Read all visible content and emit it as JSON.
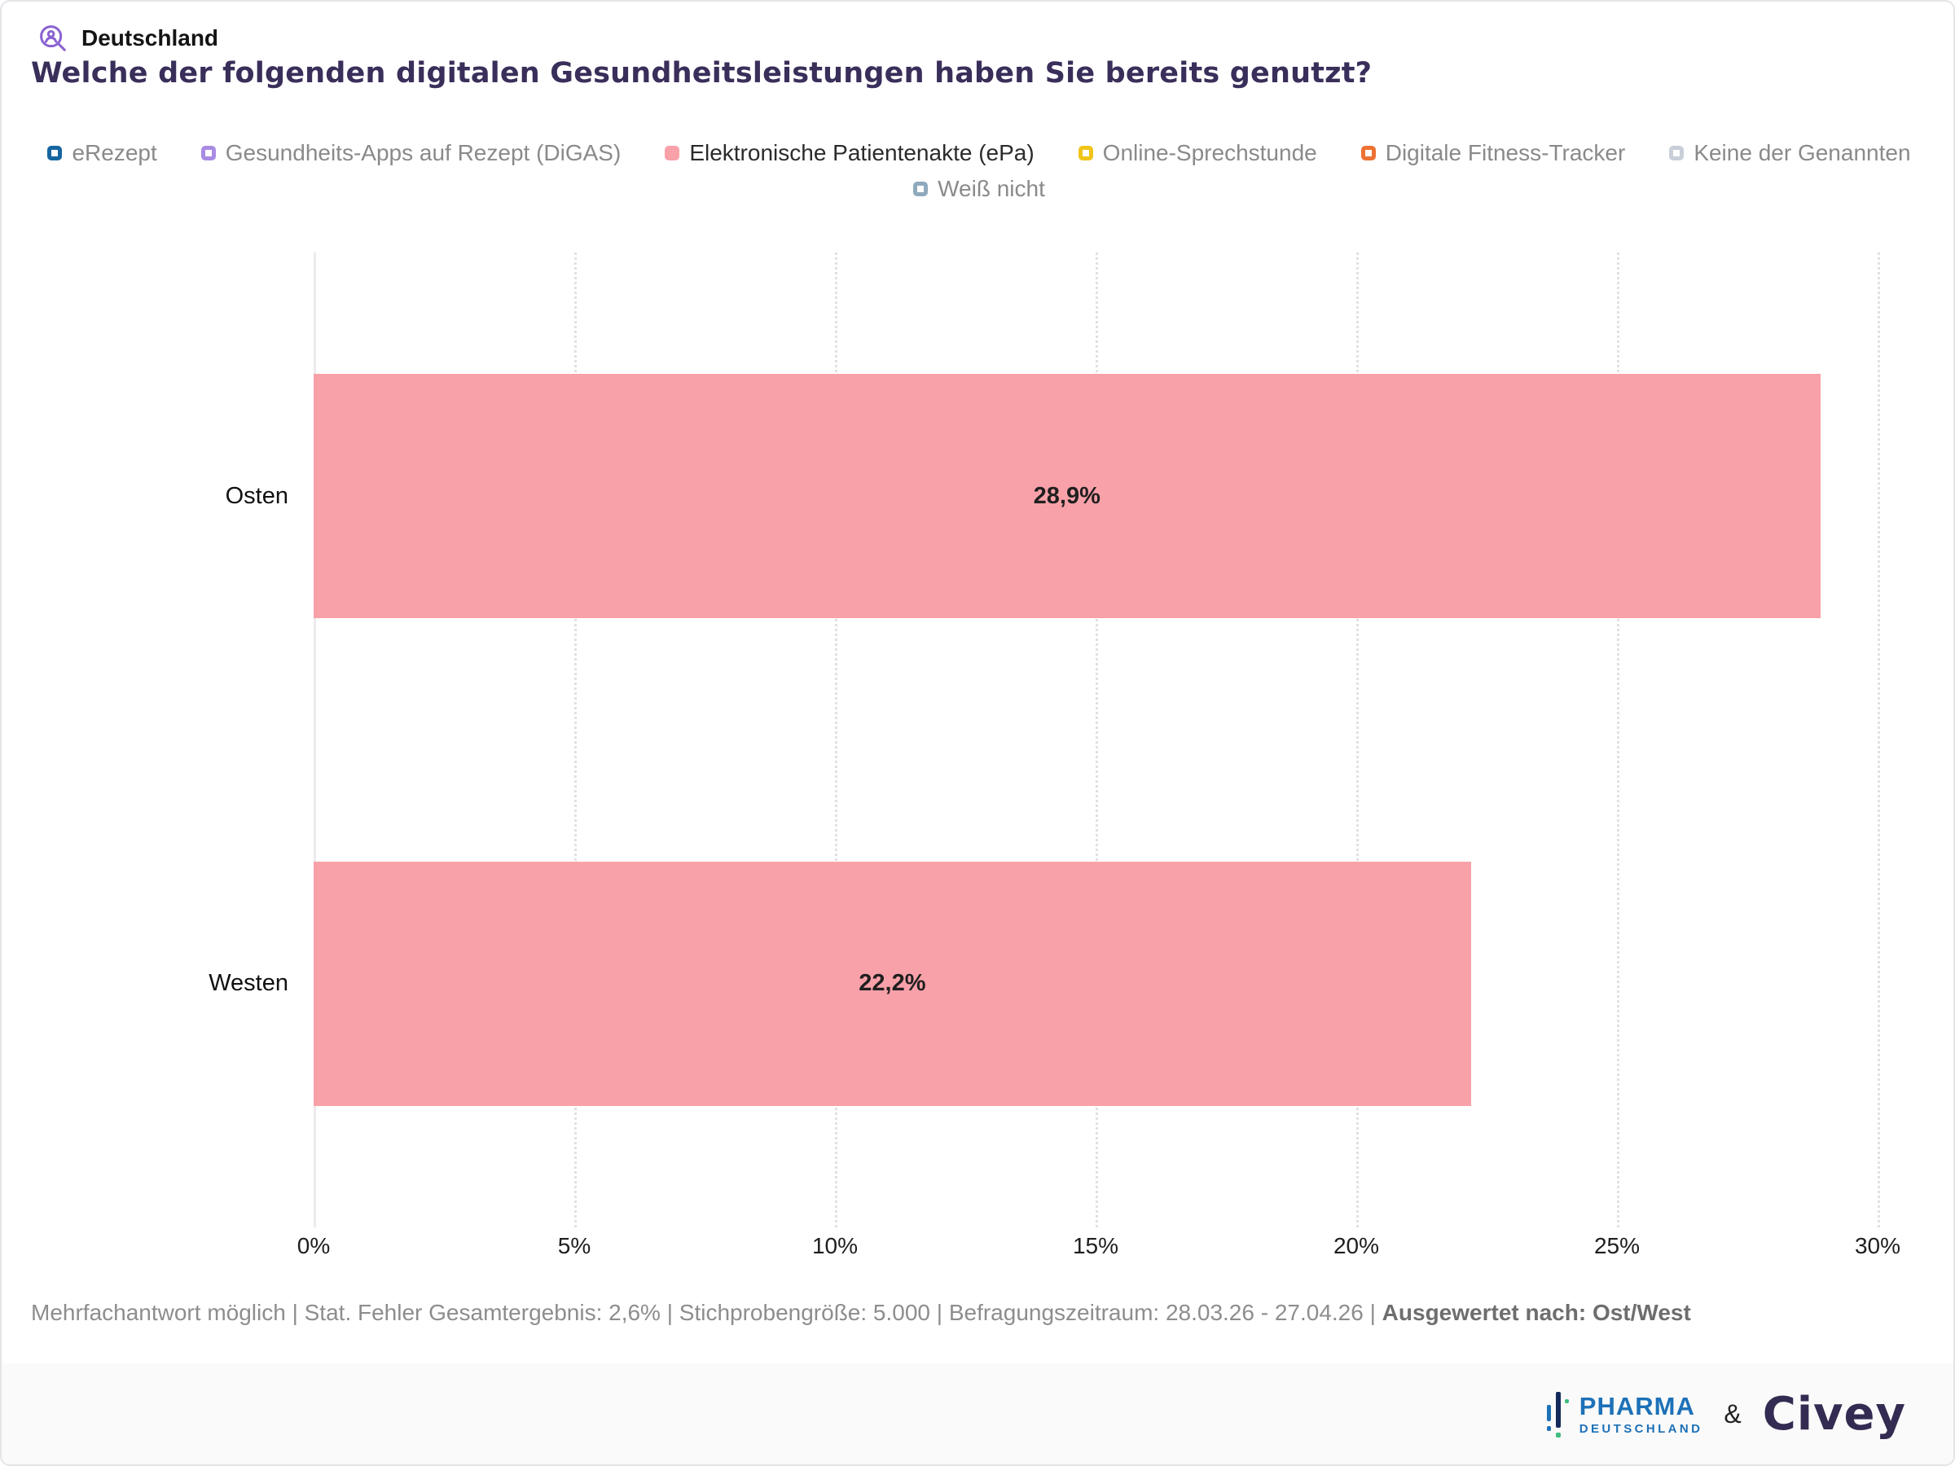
{
  "header": {
    "region_label": "Deutschland",
    "title": "Welche der folgenden digitalen Gesundheitsleistungen haben Sie bereits genutzt?"
  },
  "colors": {
    "accent_icon_purple": "#8A63D2",
    "title_purple": "#3A2E5A",
    "bar_pink": "#F9A1A9"
  },
  "legend": {
    "rows": [
      [
        0,
        1,
        2,
        3,
        4,
        5
      ],
      [
        6
      ]
    ],
    "items": [
      {
        "label": "eRezept",
        "color": "#1565A0",
        "filled": false,
        "active": false
      },
      {
        "label": "Gesundheits-Apps auf Rezept (DiGAS)",
        "color": "#A98BE3",
        "filled": false,
        "active": false
      },
      {
        "label": "Elektronische Patientenakte (ePa)",
        "color": "#F9A1A9",
        "filled": true,
        "active": true
      },
      {
        "label": "Online-Sprechstunde",
        "color": "#F0C419",
        "filled": false,
        "active": false
      },
      {
        "label": "Digitale Fitness-Tracker",
        "color": "#ED7233",
        "filled": false,
        "active": false
      },
      {
        "label": "Keine der Genannten",
        "color": "#C9CFD8",
        "filled": false,
        "active": false
      },
      {
        "label": "Weiß nicht",
        "color": "#8FA9BD",
        "filled": false,
        "active": false
      }
    ]
  },
  "chart_data": {
    "type": "bar",
    "orientation": "horizontal",
    "title": "Welche der folgenden digitalen Gesundheitsleistungen haben Sie bereits genutzt?",
    "categories": [
      "Osten",
      "Westen"
    ],
    "series": [
      {
        "name": "Elektronische Patientenakte (ePa)",
        "values": [
          28.9,
          22.2
        ],
        "value_labels": [
          "28,9%",
          "22,2%"
        ],
        "color": "#F9A1A9"
      }
    ],
    "xlim": [
      0,
      30
    ],
    "xticks": [
      0,
      5,
      10,
      15,
      20,
      25,
      30
    ],
    "xtick_labels": [
      "0%",
      "5%",
      "10%",
      "15%",
      "20%",
      "25%",
      "30%"
    ],
    "grid": "vertical-dotted",
    "legend_position": "top"
  },
  "footnote": {
    "main": "Mehrfachantwort möglich | Stat. Fehler Gesamtergebnis: 2,6% | Stichprobengröße: 5.000 | Befragungszeitraum: 28.03.26 - 27.04.26 | ",
    "bold": "Ausgewertet nach: Ost/West"
  },
  "footer": {
    "pharma_line1": "PHARMA",
    "pharma_line2": "DEUTSCHLAND",
    "ampersand": "&",
    "civey": "Civey"
  }
}
